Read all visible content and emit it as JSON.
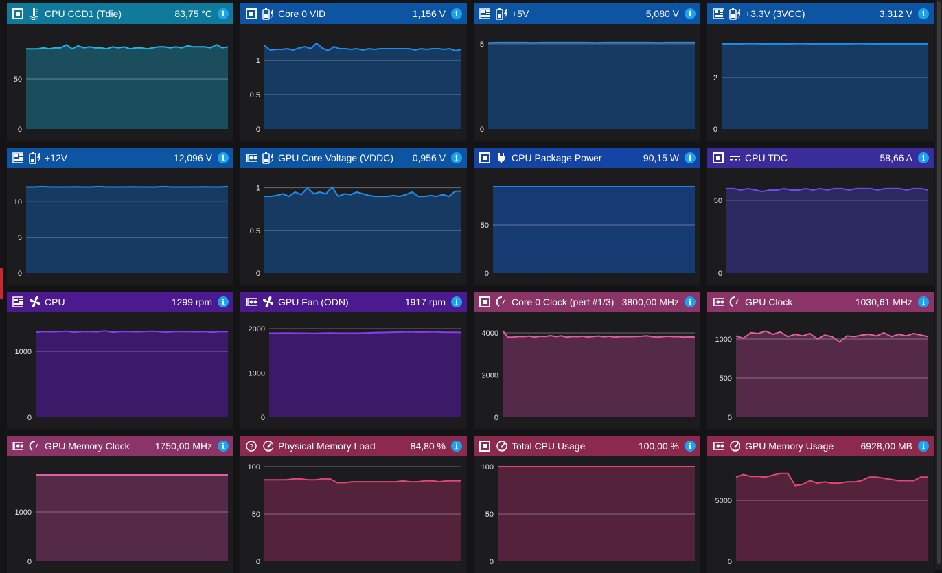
{
  "panels": [
    {
      "device": "cpu",
      "sensor": "thermometer",
      "name": "CPU CCD1 (Tdie)",
      "value": "83,75 °C",
      "header": "#0f7a9c",
      "line": "#1fb7e8",
      "fill": "#1a4e5d",
      "ymax": 94.5,
      "ticks": [
        {
          "v": 0,
          "l": "0"
        },
        {
          "v": 50,
          "l": "50"
        }
      ],
      "series": [
        80,
        80,
        80,
        81,
        80,
        81,
        81,
        84,
        80,
        83,
        81,
        82,
        81,
        81,
        80,
        82,
        81,
        82,
        80,
        81,
        81,
        80,
        81,
        82,
        82,
        81,
        82,
        81,
        83,
        82,
        82,
        82,
        81,
        84,
        81,
        82
      ]
    },
    {
      "device": "cpu",
      "sensor": "battery-bolt",
      "name": "Core 0 VID",
      "value": "1,156 V",
      "header": "#0d55a3",
      "line": "#1e8ff0",
      "fill": "#173a62",
      "ymax": 1.38,
      "ticks": [
        {
          "v": 0,
          "l": "0"
        },
        {
          "v": 0.5,
          "l": "0,5"
        },
        {
          "v": 1,
          "l": "1"
        }
      ],
      "series": [
        1.22,
        1.15,
        1.16,
        1.16,
        1.17,
        1.15,
        1.18,
        1.2,
        1.17,
        1.25,
        1.18,
        1.14,
        1.2,
        1.17,
        1.17,
        1.16,
        1.17,
        1.15,
        1.17,
        1.16,
        1.17,
        1.17,
        1.17,
        1.17,
        1.17,
        1.17,
        1.15,
        1.17,
        1.16,
        1.17,
        1.17,
        1.16,
        1.17,
        1.14,
        1.16
      ]
    },
    {
      "device": "motherboard",
      "sensor": "battery-bolt",
      "name": "+5V",
      "value": "5,080 V",
      "header": "#0d55a3",
      "line": "#1e8ff0",
      "fill": "#173a62",
      "ymax": 5.56,
      "ticks": [
        {
          "v": 0,
          "l": "0"
        },
        {
          "v": 5,
          "l": "5"
        }
      ],
      "series": [
        5.06,
        5.08,
        5.08,
        5.08,
        5.08,
        5.07,
        5.08,
        5.08,
        5.08,
        5.08,
        5.08,
        5.08,
        5.07,
        5.08,
        5.08,
        5.08,
        5.08,
        5.08,
        5.08,
        5.07,
        5.08,
        5.08,
        5.08,
        5.08
      ]
    },
    {
      "device": "motherboard",
      "sensor": "battery-bolt",
      "name": "+3.3V (3VCC)",
      "value": "3,312 V",
      "header": "#0d55a3",
      "line": "#1e8ff0",
      "fill": "#173a62",
      "ymax": 3.68,
      "ticks": [
        {
          "v": 0,
          "l": "0"
        },
        {
          "v": 2,
          "l": "2"
        }
      ],
      "series": [
        3.31,
        3.31,
        3.31,
        3.32,
        3.31,
        3.31,
        3.31,
        3.31,
        3.32,
        3.31,
        3.31,
        3.31,
        3.31,
        3.31,
        3.32,
        3.31,
        3.31,
        3.31,
        3.31,
        3.31,
        3.31,
        3.31
      ]
    },
    {
      "device": "motherboard",
      "sensor": "battery-bolt",
      "name": "+12V",
      "value": "12,096 V",
      "header": "#0d55a3",
      "line": "#1e8ff0",
      "fill": "#173a62",
      "ymax": 13.3,
      "ticks": [
        {
          "v": 0,
          "l": "0"
        },
        {
          "v": 5,
          "l": "5"
        },
        {
          "v": 10,
          "l": "10"
        }
      ],
      "series": [
        12.1,
        12.1,
        12.15,
        12.1,
        12.1,
        12.1,
        12.12,
        12.1,
        12.1,
        12.15,
        12.1,
        12.1,
        12.1,
        12.12,
        12.1,
        12.1,
        12.1,
        12.15,
        12.1,
        12.1,
        12.1,
        12.1,
        12.12,
        12.1,
        12.1,
        12.15
      ]
    },
    {
      "device": "gpu",
      "sensor": "battery-bolt",
      "name": "GPU Core Voltage (VDDC)",
      "value": "0,956 V",
      "header": "#0d55a3",
      "line": "#1e8ff0",
      "fill": "#173a62",
      "ymax": 1.11,
      "ticks": [
        {
          "v": 0,
          "l": "0"
        },
        {
          "v": 0.5,
          "l": "0,5"
        },
        {
          "v": 1,
          "l": "1"
        }
      ],
      "series": [
        0.9,
        0.9,
        0.91,
        0.93,
        0.9,
        0.95,
        0.92,
        1.0,
        0.93,
        0.95,
        0.93,
        1.01,
        0.9,
        0.93,
        0.92,
        0.95,
        0.93,
        0.91,
        0.9,
        0.9,
        0.9,
        0.91,
        0.9,
        0.92,
        0.95,
        0.9,
        0.9,
        0.91,
        0.9,
        0.92,
        0.9,
        0.96,
        0.96
      ]
    },
    {
      "device": "cpu",
      "sensor": "plug",
      "name": "CPU Package Power",
      "value": "90,15 W",
      "header": "#1444a4",
      "line": "#2a7cf0",
      "fill": "#163a72",
      "ymax": 98.6,
      "ticks": [
        {
          "v": 0,
          "l": "0"
        },
        {
          "v": 50,
          "l": "50"
        }
      ],
      "series": [
        90,
        90,
        90,
        90,
        90,
        90,
        90,
        90,
        90,
        90,
        90,
        90,
        90,
        90,
        90,
        90,
        90,
        90,
        90,
        90,
        90
      ]
    },
    {
      "device": "cpu",
      "sensor": "dc",
      "name": "CPU TDC",
      "value": "58,66 A",
      "header": "#3a2d9a",
      "line": "#6a4cf0",
      "fill": "#2c2860",
      "ymax": 65,
      "ticks": [
        {
          "v": 0,
          "l": "0"
        },
        {
          "v": 50,
          "l": "50"
        }
      ],
      "series": [
        58,
        58,
        57,
        58,
        57,
        56,
        57,
        57,
        58,
        57,
        57,
        58,
        57,
        58,
        57,
        58,
        58,
        57,
        58,
        58,
        58,
        57,
        58,
        58,
        58,
        57,
        58,
        58,
        57
      ]
    },
    {
      "device": "motherboard",
      "sensor": "fan",
      "name": "CPU",
      "value": "1299 rpm",
      "header": "#4a1a8e",
      "line": "#8a3cf0",
      "fill": "#3b1a6a",
      "ymax": 1437,
      "ticks": [
        {
          "v": 0,
          "l": "0"
        },
        {
          "v": 1000,
          "l": "1000"
        }
      ],
      "series": [
        1290,
        1300,
        1295,
        1300,
        1305,
        1290,
        1300,
        1300,
        1295,
        1310,
        1290,
        1300,
        1300,
        1295,
        1300,
        1305,
        1300,
        1290,
        1300,
        1300,
        1300,
        1295,
        1300,
        1290,
        1300,
        1300
      ]
    },
    {
      "device": "gpu",
      "sensor": "fan",
      "name": "GPU Fan (ODN)",
      "value": "1917 rpm",
      "header": "#4a1a8e",
      "line": "#8a3cf0",
      "fill": "#3b1a6a",
      "ymax": 2140,
      "ticks": [
        {
          "v": 0,
          "l": "0"
        },
        {
          "v": 1000,
          "l": "1000"
        },
        {
          "v": 2000,
          "l": "2000"
        }
      ],
      "series": [
        1900,
        1900,
        1905,
        1900,
        1900,
        1895,
        1900,
        1905,
        1900,
        1900,
        1900,
        1905,
        1910,
        1915,
        1920,
        1925,
        1930,
        1925,
        1925,
        1930,
        1920,
        1920,
        1917
      ]
    },
    {
      "device": "cpu",
      "sensor": "gauge",
      "name": "Core 0 Clock (perf #1/3)",
      "value": "3800,00 MHz",
      "header": "#8a3468",
      "line": "#e060a0",
      "fill": "#542a48",
      "ymax": 4488,
      "ticks": [
        {
          "v": 0,
          "l": "0"
        },
        {
          "v": 2000,
          "l": "2000"
        },
        {
          "v": 4000,
          "l": "4000"
        }
      ],
      "series": [
        4100,
        3800,
        3800,
        3830,
        3820,
        3850,
        3800,
        3840,
        3830,
        3870,
        3820,
        3860,
        3800,
        3830,
        3820,
        3840,
        3800,
        3830,
        3850,
        3810,
        3840,
        3800,
        3820,
        3820,
        3820,
        3830,
        3840,
        3860,
        3820,
        3800,
        3820,
        3840,
        3820,
        3820,
        3800,
        3810,
        3800
      ]
    },
    {
      "device": "gpu",
      "sensor": "gauge",
      "name": "GPU Clock",
      "value": "1030,61 MHz",
      "header": "#8a3468",
      "line": "#e060a0",
      "fill": "#542a48",
      "ymax": 1210,
      "ticks": [
        {
          "v": 0,
          "l": "0"
        },
        {
          "v": 500,
          "l": "500"
        },
        {
          "v": 1000,
          "l": "1000"
        }
      ],
      "series": [
        1040,
        1010,
        1080,
        1070,
        1100,
        1060,
        1090,
        1030,
        1060,
        1040,
        1070,
        1000,
        1050,
        1030,
        960,
        1040,
        1030,
        1050,
        1060,
        1040,
        1080,
        1030,
        1060,
        1040,
        1070,
        1050,
        1030
      ]
    },
    {
      "device": "gpu",
      "sensor": "gauge",
      "name": "GPU Memory Clock",
      "value": "1750,00 MHz",
      "header": "#8a3468",
      "line": "#e060a0",
      "fill": "#542a48",
      "ymax": 1917,
      "ticks": [
        {
          "v": 0,
          "l": "0"
        },
        {
          "v": 1000,
          "l": "1000"
        }
      ],
      "series": [
        1750,
        1750,
        1750,
        1750,
        1750,
        1750,
        1750,
        1750,
        1750,
        1750
      ]
    },
    {
      "device": "unknown",
      "sensor": "gauge-load",
      "name": "Physical Memory Load",
      "value": "84,80 %",
      "header": "#8b2a4d",
      "line": "#e04878",
      "fill": "#54223a",
      "ymax": 100,
      "ticks": [
        {
          "v": 0,
          "l": "0"
        },
        {
          "v": 50,
          "l": "50"
        },
        {
          "v": 100,
          "l": "100"
        }
      ],
      "series": [
        86,
        86,
        86,
        86,
        87,
        87,
        86,
        86,
        87,
        87,
        83,
        83,
        84,
        84,
        84,
        84,
        84,
        84,
        84,
        85,
        84,
        84,
        85,
        85,
        84,
        85,
        85,
        85
      ]
    },
    {
      "device": "cpu",
      "sensor": "gauge-load",
      "name": "Total CPU Usage",
      "value": "100,00 %",
      "header": "#8b2a4d",
      "line": "#e04878",
      "fill": "#54223a",
      "ymax": 100,
      "ticks": [
        {
          "v": 0,
          "l": "0"
        },
        {
          "v": 50,
          "l": "50"
        },
        {
          "v": 100,
          "l": "100"
        }
      ],
      "series": [
        100,
        100,
        100,
        100,
        100,
        100,
        100,
        100,
        100,
        100
      ]
    },
    {
      "device": "gpu",
      "sensor": "gauge-load",
      "name": "GPU Memory Usage",
      "value": "6928,00 MB",
      "header": "#8b2a4d",
      "line": "#e04878",
      "fill": "#54223a",
      "ymax": 7753,
      "ticks": [
        {
          "v": 0,
          "l": "0"
        },
        {
          "v": 5000,
          "l": "5000"
        }
      ],
      "series": [
        6900,
        7100,
        6950,
        6950,
        6900,
        7050,
        7200,
        7200,
        6200,
        6300,
        6600,
        6400,
        6500,
        6400,
        6400,
        6500,
        6500,
        6600,
        6900,
        6900,
        6800,
        6700,
        6600,
        6600,
        6600,
        6900,
        6900
      ]
    }
  ]
}
